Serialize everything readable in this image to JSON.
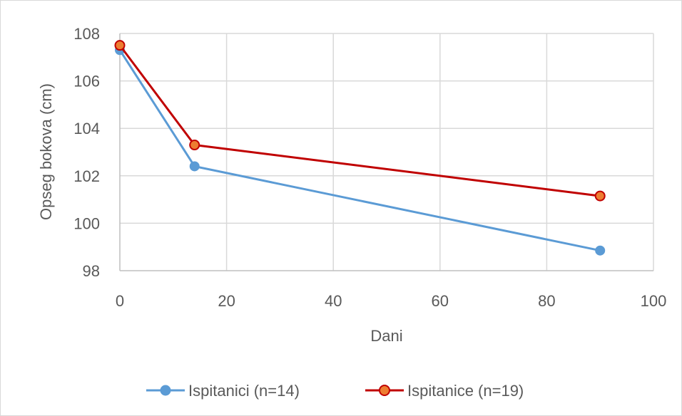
{
  "chart_data": {
    "type": "line",
    "title": "",
    "xlabel": "Dani",
    "ylabel": "Opseg bokova  (cm)",
    "xlim": [
      0,
      100
    ],
    "ylim": [
      98,
      108
    ],
    "x_ticks": [
      "0",
      "20",
      "40",
      "60",
      "80",
      "100"
    ],
    "y_ticks": [
      "98",
      "100",
      "102",
      "104",
      "106",
      "108"
    ],
    "grid": true,
    "legend_position": "bottom",
    "series": [
      {
        "name": "Ispitanici (n=14)",
        "color": "#5B9BD5",
        "marker_fill": "#5B9BD5",
        "points": [
          [
            0,
            107.3
          ],
          [
            14,
            102.4
          ],
          [
            90,
            98.85
          ]
        ]
      },
      {
        "name": "Ispitanice (n=19)",
        "color": "#C00000",
        "marker_fill": "#ED7D31",
        "points": [
          [
            0,
            107.5
          ],
          [
            14,
            103.3
          ],
          [
            90,
            101.15
          ]
        ]
      }
    ]
  }
}
